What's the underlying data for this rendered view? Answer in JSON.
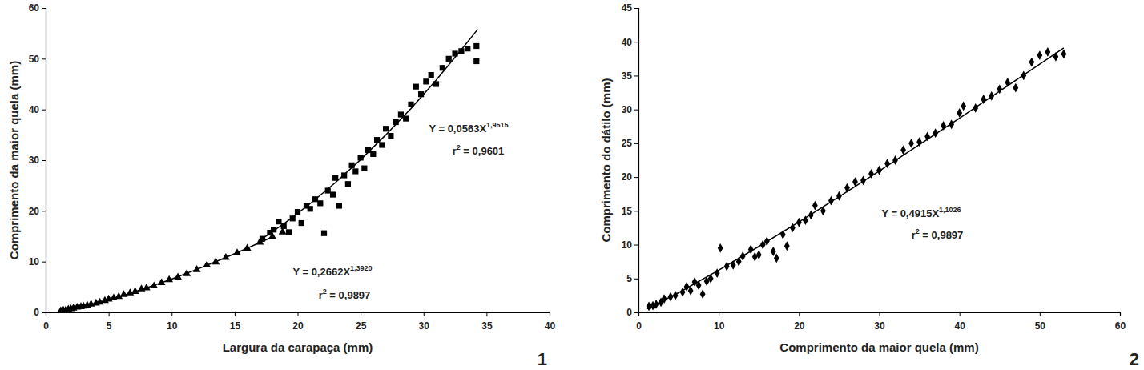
{
  "chart_data": [
    {
      "type": "scatter",
      "x_label": "Largura da carapaça (mm)",
      "y_label": "Comprimento da maior quela (mm)",
      "panel_label": "1",
      "xlim": [
        0,
        40
      ],
      "xticks": [
        0,
        5,
        10,
        15,
        20,
        25,
        30,
        35,
        40
      ],
      "ylim": [
        0,
        60
      ],
      "yticks": [
        0,
        10,
        20,
        30,
        40,
        50,
        60
      ],
      "annotations": [
        {
          "base": "Y = 0,0563X",
          "exponent": "1,9515"
        },
        {
          "base": "r",
          "exponent": "2",
          "tail": " = 0,9601"
        },
        {
          "base": "Y = 0,2662X",
          "exponent": "1,3920"
        },
        {
          "base": "r",
          "exponent": "2",
          "tail": " = 0,9897"
        }
      ],
      "series": [
        {
          "type": "scatter",
          "marker": "triangle",
          "color": "#000000",
          "x": [
            1.2,
            1.4,
            1.6,
            1.8,
            2.0,
            2.2,
            2.5,
            2.8,
            3.0,
            3.3,
            3.6,
            4.0,
            4.3,
            4.7,
            5.0,
            5.4,
            5.8,
            6.2,
            6.7,
            7.1,
            7.6,
            8.0,
            8.6,
            9.2,
            9.8,
            10.5,
            11.2,
            12.0,
            12.8,
            13.5,
            14.3,
            15.2,
            16.0,
            17.0,
            18.0,
            18.8
          ],
          "values": [
            0.3,
            0.4,
            0.5,
            0.6,
            0.7,
            0.8,
            1.0,
            1.1,
            1.2,
            1.4,
            1.6,
            1.8,
            2.0,
            2.3,
            2.6,
            2.8,
            3.1,
            3.5,
            3.8,
            4.1,
            4.6,
            4.8,
            5.2,
            5.8,
            6.4,
            6.9,
            7.6,
            8.4,
            9.3,
            9.9,
            10.8,
            11.7,
            12.6,
            13.8,
            14.9,
            15.8
          ]
        },
        {
          "type": "scatter",
          "marker": "square",
          "color": "#000000",
          "x": [
            17.2,
            17.8,
            18.1,
            18.5,
            18.9,
            19.3,
            19.6,
            20.0,
            20.3,
            20.7,
            21.0,
            21.4,
            21.8,
            22.1,
            22.4,
            22.8,
            23.0,
            23.3,
            23.7,
            24.0,
            24.3,
            24.6,
            25.0,
            25.3,
            25.6,
            26.0,
            26.3,
            26.7,
            27.0,
            27.4,
            27.8,
            28.2,
            28.6,
            29.0,
            29.4,
            29.8,
            30.2,
            30.6,
            31.0,
            31.5,
            32.0,
            32.5,
            33.0,
            33.5,
            34.2,
            34.2
          ],
          "values": [
            14.5,
            15.7,
            16.3,
            17.9,
            17.0,
            15.8,
            18.5,
            19.8,
            17.6,
            21.0,
            20.4,
            22.3,
            21.5,
            15.6,
            24.0,
            23.2,
            26.5,
            21.0,
            27.0,
            25.3,
            29.0,
            27.8,
            30.5,
            28.4,
            32.0,
            31.2,
            34.0,
            33.0,
            36.2,
            34.8,
            37.5,
            39.0,
            38.2,
            41.0,
            44.5,
            43.0,
            45.5,
            46.8,
            45.0,
            48.2,
            50.0,
            51.0,
            51.5,
            52.0,
            52.5,
            49.5
          ]
        },
        {
          "type": "line",
          "line_style": "solid",
          "color": "#000000",
          "x": [
            1,
            2,
            4,
            6,
            8,
            10,
            12,
            14,
            16,
            18
          ],
          "values": [
            0.27,
            0.7,
            1.83,
            3.22,
            4.81,
            6.56,
            8.46,
            10.49,
            12.64,
            14.88
          ]
        },
        {
          "type": "line",
          "line_style": "solid",
          "color": "#000000",
          "x": [
            17,
            19,
            21,
            23,
            25,
            27,
            29,
            31,
            33,
            34.3
          ],
          "values": [
            14.2,
            17.62,
            21.43,
            25.57,
            30.1,
            34.99,
            40.2,
            45.8,
            51.8,
            55.8
          ]
        }
      ]
    },
    {
      "type": "scatter",
      "x_label": "Comprimento da maior quela (mm)",
      "y_label": "Comprimento do dátilo (mm)",
      "panel_label": "2",
      "xlim": [
        0,
        60
      ],
      "xticks": [
        0,
        10,
        20,
        30,
        40,
        50,
        60
      ],
      "ylim": [
        0,
        45
      ],
      "yticks": [
        0,
        5,
        10,
        15,
        20,
        25,
        30,
        35,
        40,
        45
      ],
      "annotations": [
        {
          "base": "Y = 0,4915X",
          "exponent": "1,1026"
        },
        {
          "base": "r",
          "exponent": "2",
          "tail": " = 0,9897"
        }
      ],
      "series": [
        {
          "type": "scatter",
          "marker": "diamond",
          "color": "#000000",
          "x": [
            1.3,
            1.8,
            2.2,
            2.8,
            3.2,
            4.0,
            4.6,
            5.5,
            6.0,
            6.5,
            7.0,
            7.5,
            8.0,
            8.5,
            9.0,
            9.8,
            10.2,
            11.0,
            11.8,
            12.5,
            13.0,
            14.0,
            14.5,
            15.0,
            15.5,
            16.0,
            16.8,
            17.2,
            18.0,
            18.5,
            19.2,
            20.0,
            20.8,
            21.5,
            22.0,
            23.0,
            24.0,
            25.0,
            26.0,
            27.0,
            28.0,
            29.0,
            30.0,
            31.0,
            32.0,
            33.0,
            34.0,
            35.0,
            36.0,
            37.0,
            38.0,
            39.0,
            40.0,
            40.5,
            42.0,
            43.0,
            44.0,
            45.0,
            46.0,
            47.0,
            48.0,
            49.0,
            50.0,
            51.0,
            52.0,
            53.0
          ],
          "values": [
            0.9,
            1.0,
            1.2,
            1.5,
            2.0,
            2.3,
            2.5,
            3.0,
            3.8,
            3.2,
            4.5,
            4.0,
            2.7,
            4.6,
            5.0,
            5.8,
            9.5,
            6.8,
            7.0,
            7.5,
            8.3,
            9.3,
            8.2,
            8.5,
            10.0,
            10.5,
            9.0,
            8.0,
            11.5,
            9.8,
            12.5,
            13.3,
            13.6,
            14.4,
            15.8,
            15.0,
            16.5,
            17.2,
            18.4,
            19.3,
            19.5,
            20.5,
            21.0,
            22.0,
            22.5,
            24.0,
            25.0,
            25.2,
            26.0,
            26.5,
            27.6,
            27.8,
            29.5,
            30.5,
            30.2,
            31.5,
            32.0,
            33.0,
            34.0,
            33.2,
            35.0,
            37.0,
            38.0,
            38.5,
            37.8,
            38.2
          ]
        },
        {
          "type": "line",
          "line_style": "solid",
          "color": "#000000",
          "x": [
            1,
            5,
            10,
            15,
            20,
            25,
            30,
            35,
            40,
            45,
            50,
            53
          ],
          "values": [
            0.49,
            2.9,
            6.23,
            9.74,
            13.37,
            17.1,
            20.9,
            24.8,
            28.7,
            32.7,
            36.7,
            39.1
          ]
        }
      ]
    }
  ]
}
